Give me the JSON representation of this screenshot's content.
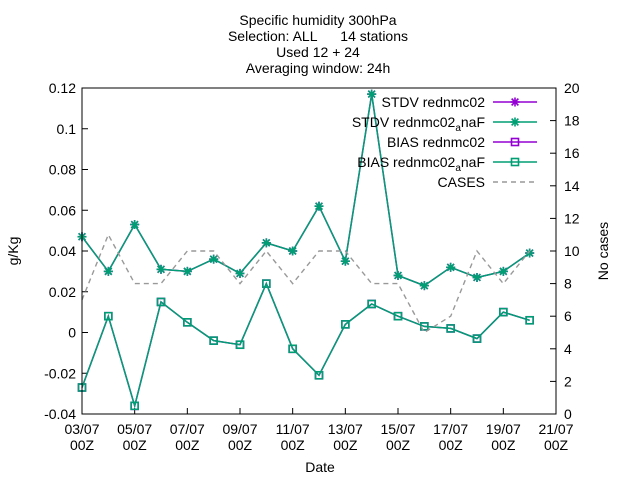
{
  "chart_data": {
    "type": "line",
    "title_lines": [
      "Specific humidity 300hPa",
      "Selection: ALL      14 stations",
      "Used 12 + 24",
      "Averaging window: 24h"
    ],
    "xlabel": "Date",
    "ylabel": "g/Kg",
    "y2label": "No cases",
    "ylim": [
      -0.04,
      0.12
    ],
    "y2lim": [
      0,
      20
    ],
    "yticks": [
      -0.04,
      -0.02,
      0,
      0.02,
      0.04,
      0.06,
      0.08,
      0.1,
      0.12
    ],
    "ytick_labels": [
      "-0.04",
      "-0.02",
      "0",
      "0.02",
      "0.04",
      "0.06",
      "0.08",
      "0.1",
      "0.12"
    ],
    "y2ticks": [
      0,
      2,
      4,
      6,
      8,
      10,
      12,
      14,
      16,
      18,
      20
    ],
    "y2tick_labels": [
      "0",
      "2",
      "4",
      "6",
      "8",
      "10",
      "12",
      "14",
      "16",
      "18",
      "20"
    ],
    "xlim": [
      "2023-07-03 00Z",
      "2023-07-21 00Z"
    ],
    "xticks": [
      {
        "date": "03/07",
        "hour": "00Z"
      },
      {
        "date": "05/07",
        "hour": "00Z"
      },
      {
        "date": "07/07",
        "hour": "00Z"
      },
      {
        "date": "09/07",
        "hour": "00Z"
      },
      {
        "date": "11/07",
        "hour": "00Z"
      },
      {
        "date": "13/07",
        "hour": "00Z"
      },
      {
        "date": "15/07",
        "hour": "00Z"
      },
      {
        "date": "17/07",
        "hour": "00Z"
      },
      {
        "date": "19/07",
        "hour": "00Z"
      },
      {
        "date": "21/07",
        "hour": "00Z"
      }
    ],
    "x": [
      "03/07 00Z",
      "04/07 00Z",
      "05/07 00Z",
      "06/07 00Z",
      "07/07 00Z",
      "08/07 00Z",
      "09/07 00Z",
      "10/07 00Z",
      "11/07 00Z",
      "12/07 00Z",
      "13/07 00Z",
      "14/07 00Z",
      "15/07 00Z",
      "16/07 00Z",
      "17/07 00Z",
      "18/07 00Z",
      "19/07 00Z",
      "20/07 00Z"
    ],
    "legend_position": "top-right",
    "grid": false,
    "series": [
      {
        "name": "STDV rednmc02",
        "label_main": "STDV rednmc02",
        "label_sub": "",
        "label_tail": "",
        "axis": "y1",
        "color": "#9400d3",
        "marker": "asterisk",
        "dash": false,
        "values": [
          0.047,
          0.03,
          0.053,
          0.031,
          0.03,
          0.036,
          0.029,
          0.044,
          0.04,
          0.062,
          0.035,
          0.117,
          0.028,
          0.023,
          0.032,
          0.027,
          0.03,
          0.039
        ]
      },
      {
        "name": "STDV rednmc02_a naF",
        "label_main": "STDV rednmc02",
        "label_sub": "a",
        "label_tail": "naF",
        "axis": "y1",
        "color": "#009e73",
        "marker": "asterisk",
        "dash": false,
        "values": [
          0.047,
          0.03,
          0.053,
          0.031,
          0.03,
          0.036,
          0.029,
          0.044,
          0.04,
          0.062,
          0.035,
          0.117,
          0.028,
          0.023,
          0.032,
          0.027,
          0.03,
          0.039
        ]
      },
      {
        "name": "BIAS rednmc02",
        "label_main": "BIAS rednmc02",
        "label_sub": "",
        "label_tail": "",
        "axis": "y1",
        "color": "#9400d3",
        "marker": "square",
        "dash": false,
        "values": [
          -0.027,
          0.008,
          -0.036,
          0.015,
          0.005,
          -0.004,
          -0.006,
          0.024,
          -0.008,
          -0.021,
          0.004,
          0.014,
          0.008,
          0.003,
          0.002,
          -0.003,
          0.01,
          0.006
        ]
      },
      {
        "name": "BIAS rednmc02_a naF",
        "label_main": "BIAS rednmc02",
        "label_sub": "a",
        "label_tail": "naF",
        "axis": "y1",
        "color": "#009e73",
        "marker": "square",
        "dash": false,
        "values": [
          -0.027,
          0.008,
          -0.036,
          0.015,
          0.005,
          -0.004,
          -0.006,
          0.024,
          -0.008,
          -0.021,
          0.004,
          0.014,
          0.008,
          0.003,
          0.002,
          -0.003,
          0.01,
          0.006
        ]
      },
      {
        "name": "CASES",
        "label_main": "CASES",
        "label_sub": "",
        "label_tail": "",
        "axis": "y2",
        "color": "#999999",
        "marker": "none",
        "dash": true,
        "values": [
          7,
          11,
          8,
          8,
          10,
          10,
          8,
          10,
          8,
          10,
          10,
          8,
          8,
          5,
          6,
          10,
          8,
          10
        ]
      }
    ]
  }
}
